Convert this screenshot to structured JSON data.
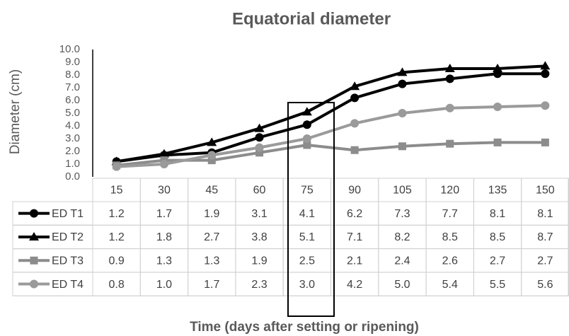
{
  "chart_data": {
    "type": "line",
    "title": "Equatorial diameter",
    "y_label": "Diameter (cm)",
    "x_label": "Time (days after setting or ripening)",
    "categories": [
      15,
      30,
      45,
      60,
      75,
      90,
      105,
      120,
      135,
      150
    ],
    "series": [
      {
        "name": "ED T1",
        "color": "#000000",
        "marker": "circle",
        "values": [
          1.2,
          1.7,
          1.9,
          3.1,
          4.1,
          6.2,
          7.3,
          7.7,
          8.1,
          8.1
        ],
        "value_labels": [
          "1.2",
          "1.7",
          "1.9",
          "3.1",
          "4.1",
          "6.2",
          "7.3",
          "7.7",
          "8.1",
          "8.1"
        ]
      },
      {
        "name": "ED T2",
        "color": "#000000",
        "marker": "triangle",
        "values": [
          1.2,
          1.8,
          2.7,
          3.8,
          5.1,
          7.1,
          8.2,
          8.5,
          8.5,
          8.7
        ],
        "value_labels": [
          "1.2",
          "1.8",
          "2.7",
          "3.8",
          "5.1",
          "7.1",
          "8.2",
          "8.5",
          "8.5",
          "8.7"
        ]
      },
      {
        "name": "ED T3",
        "color": "#8c8c8c",
        "marker": "square",
        "values": [
          0.9,
          1.3,
          1.3,
          1.9,
          2.5,
          2.1,
          2.4,
          2.6,
          2.7,
          2.7
        ],
        "value_labels": [
          "0.9",
          "1.3",
          "1.3",
          "1.9",
          "2.5",
          "2.1",
          "2.4",
          "2.6",
          "2.7",
          "2.7"
        ]
      },
      {
        "name": "ED T4",
        "color": "#9a9a9a",
        "marker": "circle",
        "values": [
          0.8,
          1.0,
          1.7,
          2.3,
          3.0,
          4.2,
          5.0,
          5.4,
          5.5,
          5.6
        ],
        "value_labels": [
          "0.8",
          "1.0",
          "1.7",
          "2.3",
          "3.0",
          "4.2",
          "5.0",
          "5.4",
          "5.5",
          "5.6"
        ]
      }
    ],
    "ylim": [
      0,
      10
    ],
    "yticks": [
      {
        "value": 0,
        "label": "0.0"
      },
      {
        "value": 1,
        "label": "1.0"
      },
      {
        "value": 2,
        "label": "2.0"
      },
      {
        "value": 3,
        "label": "3.0"
      },
      {
        "value": 4,
        "label": "4.0"
      },
      {
        "value": 5,
        "label": "5.0"
      },
      {
        "value": 6,
        "label": "6.0"
      },
      {
        "value": 7,
        "label": "7.0"
      },
      {
        "value": 8,
        "label": "8.0"
      },
      {
        "value": 9,
        "label": "9.0"
      },
      {
        "value": 10,
        "label": "10.0"
      }
    ],
    "grid": false
  }
}
